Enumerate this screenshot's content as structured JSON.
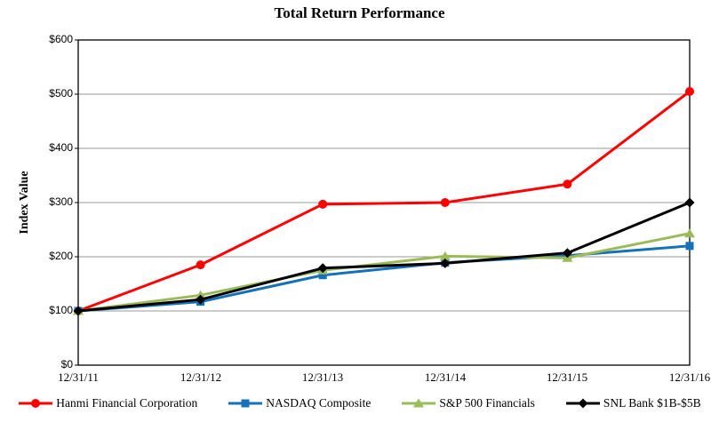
{
  "chart_data": {
    "type": "line",
    "title": "Total Return Performance",
    "ylabel": "Index Value",
    "xlabel": "",
    "ylim": [
      0,
      600
    ],
    "ytick_step": 100,
    "ytick_labels": [
      "$0",
      "$100",
      "$200",
      "$300",
      "$400",
      "$500",
      "$600"
    ],
    "categories": [
      "12/31/11",
      "12/31/12",
      "12/31/13",
      "12/31/14",
      "12/31/15",
      "12/31/16"
    ],
    "series": [
      {
        "name": "Hanmi Financial Corporation",
        "color": "#FF0000",
        "marker": "circle",
        "values": [
          100,
          185,
          297,
          300,
          334,
          505
        ]
      },
      {
        "name": "NASDAQ Composite",
        "color": "#1572BA",
        "marker": "square",
        "values": [
          100,
          117,
          166,
          189,
          202,
          220
        ]
      },
      {
        "name": "S&P 500 Financials",
        "color": "#9BBB59",
        "marker": "triangle",
        "values": [
          100,
          129,
          175,
          201,
          198,
          243
        ]
      },
      {
        "name": "SNL Bank $1B-$5B",
        "color": "#000000",
        "marker": "diamond",
        "values": [
          100,
          121,
          179,
          188,
          207,
          300
        ]
      }
    ],
    "grid": true,
    "grid_color": "#999999",
    "frame_color": "#000000",
    "legend_position": "bottom"
  }
}
